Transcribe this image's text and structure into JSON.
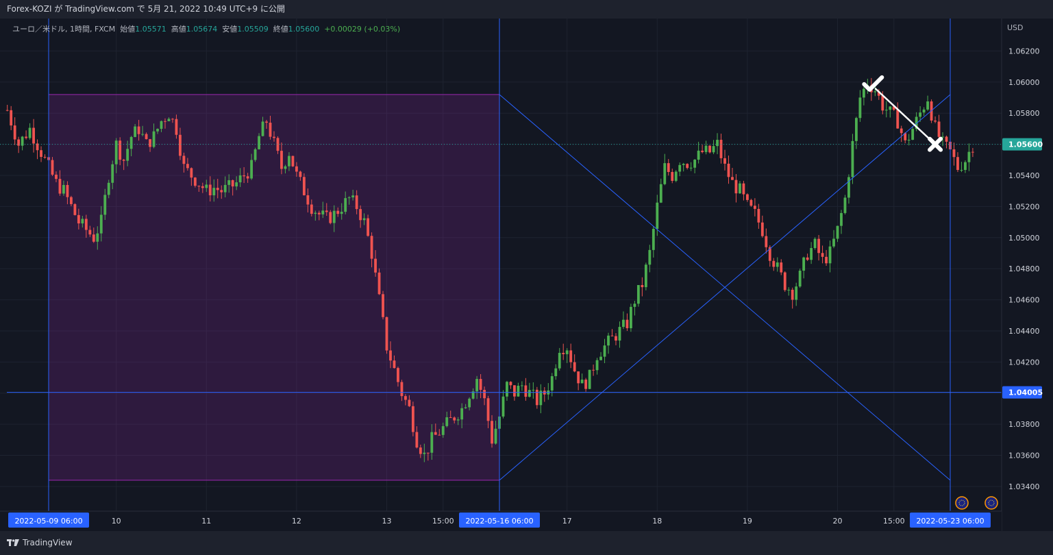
{
  "header": {
    "published": "Forex-KOZI が TradingView.com で 5月 21, 2022 10:49 UTC+9 に公開"
  },
  "legend": {
    "symbol": "ユーロ／米ドル, 1時間, FXCM",
    "open_label": "始値",
    "open": "1.05571",
    "high_label": "高値",
    "high": "1.05674",
    "low_label": "安値",
    "low": "1.05509",
    "close_label": "終値",
    "close": "1.05600",
    "change": "+0.00029 (+0.03%)"
  },
  "footer": {
    "brand": "TradingView"
  },
  "chart_data": {
    "type": "candlestick",
    "currency": "USD",
    "ylim": [
      1.0325,
      1.064
    ],
    "y_ticks": [
      "1.06200",
      "1.06000",
      "1.05800",
      "1.05600",
      "1.05400",
      "1.05200",
      "1.05000",
      "1.04800",
      "1.04600",
      "1.04400",
      "1.04200",
      "1.04000",
      "1.03800",
      "1.03600",
      "1.03400"
    ],
    "x_ticks": [
      {
        "label": "2022-05-09   06:00",
        "t": 0,
        "highlight": true
      },
      {
        "label": "10",
        "t": 18
      },
      {
        "label": "11",
        "t": 42
      },
      {
        "label": "12",
        "t": 66
      },
      {
        "label": "13",
        "t": 90
      },
      {
        "label": "15:00",
        "t": 105
      },
      {
        "label": "2022-05-16   06:00",
        "t": 120,
        "highlight": true
      },
      {
        "label": "17",
        "t": 138
      },
      {
        "label": "18",
        "t": 162
      },
      {
        "label": "19",
        "t": 186
      },
      {
        "label": "20",
        "t": 210
      },
      {
        "label": "15:00",
        "t": 225
      },
      {
        "label": "2022-05-23   06:00",
        "t": 240,
        "highlight": true
      }
    ],
    "price_labels": [
      {
        "label": "1.05600",
        "value": 1.056,
        "color": "#26a69a"
      },
      {
        "label": "1.04005",
        "value": 1.04005,
        "color": "#2962ff"
      }
    ],
    "close_path": [
      [
        -11,
        1.0582
      ],
      [
        -8,
        1.056
      ],
      [
        -5,
        1.057
      ],
      [
        -2,
        1.0555
      ],
      [
        0,
        1.0545
      ],
      [
        2,
        1.0535
      ],
      [
        4,
        1.053
      ],
      [
        6,
        1.052
      ],
      [
        8,
        1.051
      ],
      [
        10,
        1.0505
      ],
      [
        12,
        1.05
      ],
      [
        14,
        1.051
      ],
      [
        16,
        1.054
      ],
      [
        18,
        1.056
      ],
      [
        20,
        1.055
      ],
      [
        22,
        1.0565
      ],
      [
        24,
        1.057
      ],
      [
        26,
        1.056
      ],
      [
        28,
        1.0565
      ],
      [
        30,
        1.0575
      ],
      [
        32,
        1.058
      ],
      [
        34,
        1.057
      ],
      [
        36,
        1.0545
      ],
      [
        38,
        1.054
      ],
      [
        40,
        1.0535
      ],
      [
        42,
        1.053
      ],
      [
        44,
        1.0532
      ],
      [
        46,
        1.053
      ],
      [
        48,
        1.0532
      ],
      [
        50,
        1.0535
      ],
      [
        52,
        1.054
      ],
      [
        54,
        1.0545
      ],
      [
        56,
        1.0565
      ],
      [
        58,
        1.0575
      ],
      [
        60,
        1.056
      ],
      [
        62,
        1.0545
      ],
      [
        64,
        1.0555
      ],
      [
        66,
        1.054
      ],
      [
        68,
        1.053
      ],
      [
        70,
        1.052
      ],
      [
        72,
        1.0515
      ],
      [
        74,
        1.0512
      ],
      [
        76,
        1.0515
      ],
      [
        78,
        1.052
      ],
      [
        80,
        1.0525
      ],
      [
        82,
        1.052
      ],
      [
        84,
        1.051
      ],
      [
        86,
        1.049
      ],
      [
        88,
        1.046
      ],
      [
        90,
        1.043
      ],
      [
        92,
        1.0415
      ],
      [
        94,
        1.04
      ],
      [
        96,
        1.039
      ],
      [
        98,
        1.037
      ],
      [
        100,
        1.036
      ],
      [
        102,
        1.037
      ],
      [
        104,
        1.0375
      ],
      [
        106,
        1.038
      ],
      [
        108,
        1.0385
      ],
      [
        110,
        1.039
      ],
      [
        112,
        1.04
      ],
      [
        114,
        1.041
      ],
      [
        116,
        1.0395
      ],
      [
        118,
        1.037
      ],
      [
        120,
        1.0385
      ],
      [
        122,
        1.0405
      ],
      [
        124,
        1.04
      ],
      [
        126,
        1.0405
      ],
      [
        128,
        1.04
      ],
      [
        130,
        1.0395
      ],
      [
        132,
        1.04
      ],
      [
        134,
        1.041
      ],
      [
        136,
        1.043
      ],
      [
        138,
        1.043
      ],
      [
        140,
        1.0415
      ],
      [
        142,
        1.0405
      ],
      [
        144,
        1.041
      ],
      [
        146,
        1.0425
      ],
      [
        148,
        1.043
      ],
      [
        150,
        1.0435
      ],
      [
        152,
        1.044
      ],
      [
        154,
        1.0445
      ],
      [
        156,
        1.046
      ],
      [
        158,
        1.047
      ],
      [
        160,
        1.049
      ],
      [
        162,
        1.052
      ],
      [
        164,
        1.0545
      ],
      [
        166,
        1.054
      ],
      [
        168,
        1.055
      ],
      [
        170,
        1.0548
      ],
      [
        172,
        1.055
      ],
      [
        174,
        1.0555
      ],
      [
        176,
        1.0555
      ],
      [
        178,
        1.056
      ],
      [
        180,
        1.0545
      ],
      [
        182,
        1.0535
      ],
      [
        184,
        1.053
      ],
      [
        186,
        1.052
      ],
      [
        188,
        1.0515
      ],
      [
        190,
        1.0505
      ],
      [
        192,
        1.049
      ],
      [
        194,
        1.048
      ],
      [
        196,
        1.047
      ],
      [
        198,
        1.0465
      ],
      [
        200,
        1.0475
      ],
      [
        202,
        1.049
      ],
      [
        204,
        1.0495
      ],
      [
        206,
        1.0485
      ],
      [
        208,
        1.049
      ],
      [
        210,
        1.0505
      ],
      [
        212,
        1.0525
      ],
      [
        214,
        1.056
      ],
      [
        216,
        1.059
      ],
      [
        218,
        1.06
      ],
      [
        220,
        1.0595
      ],
      [
        222,
        1.0585
      ],
      [
        224,
        1.058
      ],
      [
        226,
        1.0575
      ],
      [
        228,
        1.056
      ],
      [
        230,
        1.057
      ],
      [
        232,
        1.058
      ],
      [
        234,
        1.059
      ],
      [
        236,
        1.057
      ],
      [
        238,
        1.056
      ],
      [
        240,
        1.0555
      ],
      [
        242,
        1.0545
      ],
      [
        244,
        1.055
      ],
      [
        246,
        1.056
      ]
    ],
    "drawings": {
      "rectangle": {
        "t1": 0,
        "t2": 120,
        "p1": 1.0592,
        "p2": 1.0344,
        "color": "#9c27b0"
      },
      "vertical_lines": [
        0,
        120,
        240
      ],
      "horizontal_line": 1.04005,
      "cross_line_down": {
        "t1": 120,
        "p1": 1.0592,
        "t2": 240,
        "p2": 1.0344
      },
      "cross_line_up": {
        "t1": 120,
        "p1": 1.0344,
        "t2": 240,
        "p2": 1.0592
      },
      "trade_arrow": {
        "t1": 220,
        "p1": 1.0596,
        "t2": 236,
        "p2": 1.056
      }
    }
  }
}
